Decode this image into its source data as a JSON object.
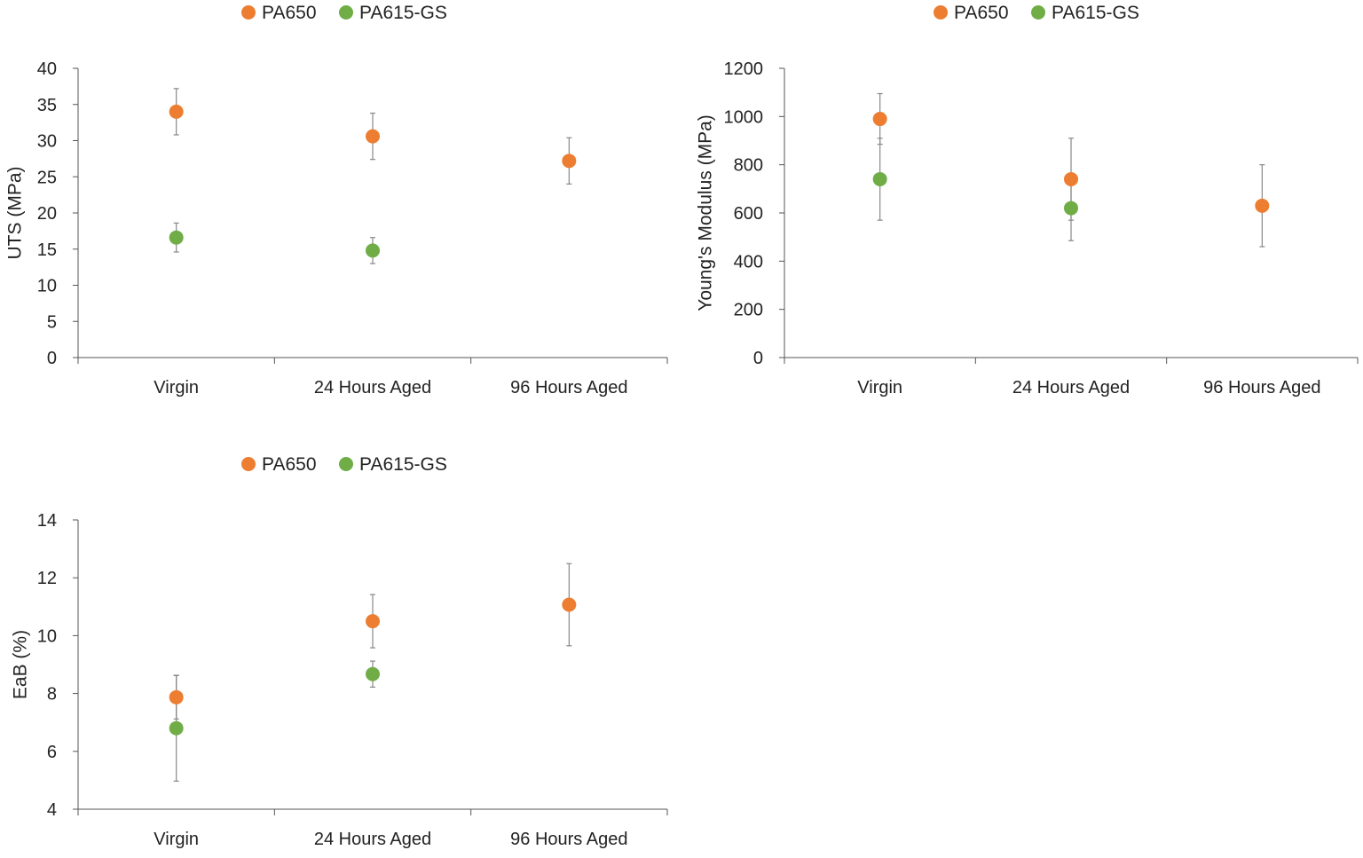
{
  "colors": {
    "PA650": "#ed7d31",
    "PA615_GS": "#70ad47",
    "axis": "#555555",
    "errorbar": "#888888"
  },
  "chart_data": [
    {
      "type": "scatter",
      "title": "",
      "xlabel": "",
      "ylabel": "UTS (MPa)",
      "categories": [
        "Virgin",
        "24 Hours Aged",
        "96 Hours Aged"
      ],
      "ylim": [
        0,
        40
      ],
      "yticks": [
        "0",
        "5",
        "10",
        "15",
        "20",
        "25",
        "30",
        "35",
        "40"
      ],
      "grid": false,
      "legend_position": "top-center",
      "series": [
        {
          "name": "PA650",
          "color_key": "PA650",
          "values": [
            34.0,
            30.6,
            27.2
          ],
          "errors": [
            3.2,
            3.2,
            3.2
          ]
        },
        {
          "name": "PA615-GS",
          "color_key": "PA615_GS",
          "values": [
            16.6,
            14.8,
            null
          ],
          "errors": [
            2.0,
            1.8,
            null
          ]
        }
      ]
    },
    {
      "type": "scatter",
      "title": "",
      "xlabel": "",
      "ylabel": "Young's Modulus (MPa)",
      "categories": [
        "Virgin",
        "24 Hours Aged",
        "96 Hours Aged"
      ],
      "ylim": [
        0,
        1200
      ],
      "yticks": [
        "0",
        "200",
        "400",
        "600",
        "800",
        "1000",
        "1200"
      ],
      "grid": false,
      "legend_position": "top-center",
      "series": [
        {
          "name": "PA650",
          "color_key": "PA650",
          "values": [
            990,
            740,
            630
          ],
          "errors": [
            105,
            170,
            170
          ]
        },
        {
          "name": "PA615-GS",
          "color_key": "PA615_GS",
          "values": [
            740,
            620,
            null
          ],
          "errors": [
            170,
            135,
            null
          ]
        }
      ]
    },
    {
      "type": "scatter",
      "title": "",
      "xlabel": "",
      "ylabel": "EaB (%)",
      "categories": [
        "Virgin",
        "24 Hours Aged",
        "96 Hours Aged"
      ],
      "ylim": [
        4,
        14
      ],
      "yticks": [
        "4",
        "6",
        "8",
        "10",
        "12",
        "14"
      ],
      "grid": false,
      "legend_position": "top-center",
      "series": [
        {
          "name": "PA650",
          "color_key": "PA650",
          "values": [
            7.87,
            10.5,
            11.07
          ],
          "errors": [
            0.75,
            0.92,
            1.42
          ]
        },
        {
          "name": "PA615-GS",
          "color_key": "PA615_GS",
          "values": [
            6.8,
            8.67,
            null
          ],
          "errors": [
            1.83,
            0.45,
            null
          ]
        }
      ]
    }
  ]
}
